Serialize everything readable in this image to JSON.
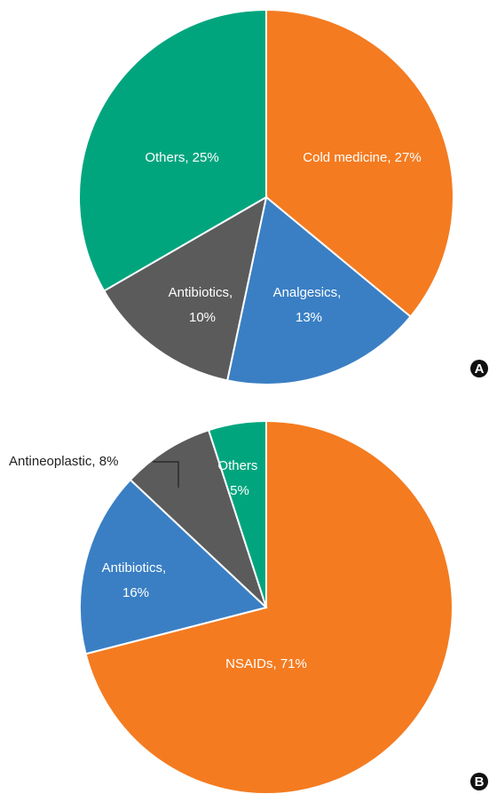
{
  "chart_data": [
    {
      "type": "pie",
      "panel_label": "A",
      "values": [
        27,
        13,
        10,
        25
      ],
      "value_labels": [
        "Cold medicine, 27%",
        "Analgesics, 13%",
        "Antibiotics, 10%",
        "Others, 25%"
      ],
      "colors": [
        "#f47b20",
        "#3a7fc4",
        "#5b5b5b",
        "#00a57e"
      ]
    },
    {
      "type": "pie",
      "panel_label": "B",
      "values": [
        71,
        16,
        8,
        5
      ],
      "value_labels": [
        "NSAIDs, 71%",
        "Antibiotics, 16%",
        "Antineoplastic, 8%",
        "Others 5%"
      ],
      "colors": [
        "#f47b20",
        "#3a7fc4",
        "#5b5b5b",
        "#00a57e"
      ]
    }
  ]
}
